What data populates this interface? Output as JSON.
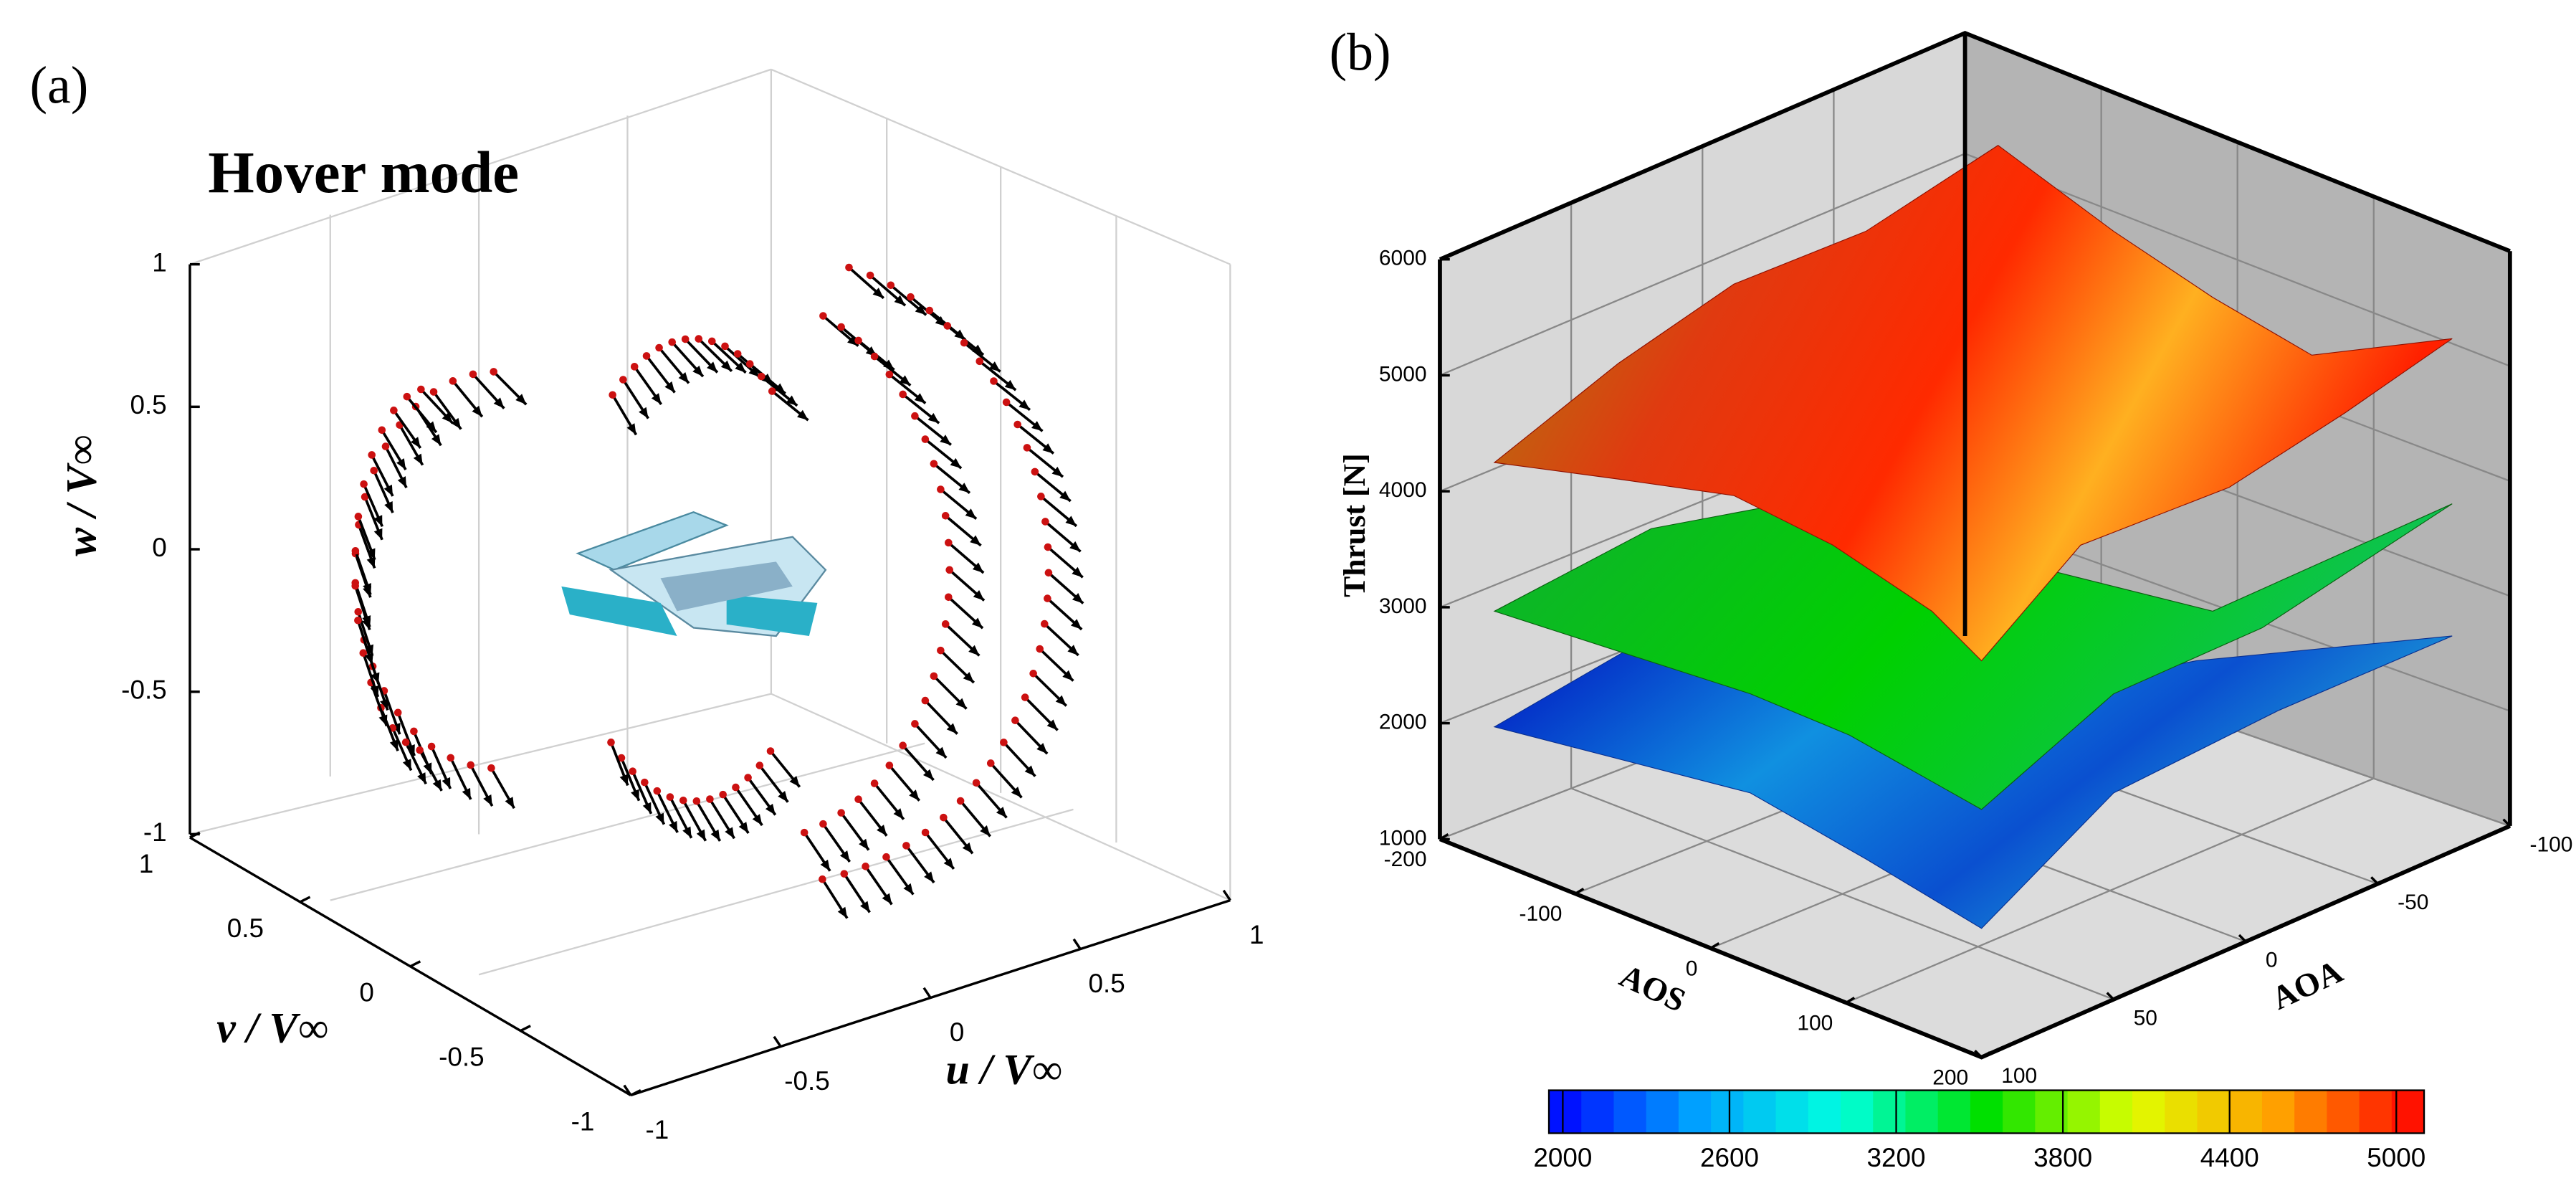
{
  "chart_data": [
    {
      "type": "quiver3d",
      "label": "(a)",
      "title": "Hover mode",
      "xlabel": "u / V∞",
      "ylabel": "v / V∞",
      "zlabel": "w / V∞",
      "xlim": [
        -1,
        1
      ],
      "xticks": [
        -1,
        -0.5,
        0,
        0.5,
        1
      ],
      "ylim": [
        1,
        -1
      ],
      "yticks": [
        1,
        0.5,
        0,
        -0.5,
        -1
      ],
      "zlim": [
        -1,
        1
      ],
      "zticks": [
        -1,
        -0.5,
        0,
        0.5,
        1
      ],
      "grid": true,
      "arrow_color": "#000000",
      "point_color": "#cc1111"
    },
    {
      "type": "surface3d",
      "label": "(b)",
      "xlabel": "AOS",
      "ylabel": "AOA",
      "zlabel": "Thrust [N]",
      "xlim": [
        -200,
        200
      ],
      "xticks": [
        -200,
        -100,
        0,
        100,
        200
      ],
      "ylim": [
        100,
        -100
      ],
      "yticks": [
        100,
        50,
        0,
        -50,
        -100
      ],
      "zlim": [
        1000,
        6000
      ],
      "zticks": [
        1000,
        2000,
        3000,
        4000,
        5000,
        6000
      ],
      "grid": true,
      "colorbar": {
        "clim": [
          1950,
          5100
        ],
        "ticks": [
          2000,
          2600,
          3200,
          3800,
          4400,
          5000
        ],
        "levels": 27,
        "colors": [
          "#0000ff",
          "#00a0ff",
          "#00ffe0",
          "#00e000",
          "#e0ff00",
          "#ffa000",
          "#ff0000"
        ]
      }
    }
  ]
}
